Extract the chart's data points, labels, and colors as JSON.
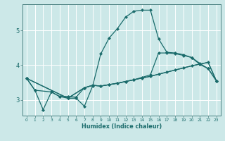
{
  "xlabel": "Humidex (Indice chaleur)",
  "xlim": [
    -0.5,
    23.5
  ],
  "ylim": [
    2.55,
    5.75
  ],
  "background_color": "#cce8e8",
  "line_color": "#1a6b6b",
  "grid_color": "#ffffff",
  "curve1_x": [
    0,
    1,
    2,
    3,
    4,
    5,
    6,
    7,
    8,
    9,
    10,
    11,
    12,
    13,
    14,
    15,
    16,
    17,
    18,
    19,
    20,
    21,
    22,
    23
  ],
  "curve1_y": [
    3.62,
    3.28,
    2.72,
    3.23,
    3.1,
    3.05,
    3.05,
    2.82,
    3.4,
    4.33,
    4.78,
    5.05,
    5.38,
    5.55,
    5.58,
    5.58,
    4.75,
    4.37,
    4.35,
    4.3,
    4.22,
    4.02,
    3.9,
    3.55
  ],
  "curve2_x": [
    0,
    1,
    3,
    4,
    5,
    6,
    7,
    8,
    9,
    10,
    11,
    12,
    13,
    14,
    15,
    16,
    17,
    18,
    19,
    20,
    21,
    22,
    23
  ],
  "curve2_y": [
    3.62,
    3.28,
    3.23,
    3.1,
    3.1,
    3.08,
    3.35,
    3.42,
    3.4,
    3.44,
    3.48,
    3.53,
    3.58,
    3.63,
    3.68,
    3.74,
    3.8,
    3.86,
    3.92,
    3.98,
    4.03,
    4.08,
    3.55
  ],
  "curve3_x": [
    0,
    5,
    7,
    8,
    9,
    10,
    11,
    12,
    13,
    14,
    15,
    16,
    17,
    18,
    19,
    20,
    21,
    22,
    23
  ],
  "curve3_y": [
    3.62,
    3.05,
    3.35,
    3.42,
    3.4,
    3.44,
    3.48,
    3.53,
    3.58,
    3.63,
    3.68,
    3.74,
    3.8,
    3.86,
    3.92,
    3.98,
    4.03,
    4.08,
    3.55
  ],
  "curve4_x": [
    0,
    5,
    7,
    8,
    9,
    10,
    11,
    12,
    13,
    14,
    15,
    16,
    17,
    18,
    19,
    20,
    21,
    22,
    23
  ],
  "curve4_y": [
    3.62,
    3.05,
    3.35,
    3.42,
    3.4,
    3.44,
    3.48,
    3.53,
    3.58,
    3.65,
    3.72,
    4.35,
    4.35,
    4.33,
    4.28,
    4.22,
    4.05,
    3.9,
    3.55
  ],
  "yticks": [
    3,
    4,
    5
  ],
  "xticks": [
    0,
    1,
    2,
    3,
    4,
    5,
    6,
    7,
    8,
    9,
    10,
    11,
    12,
    13,
    14,
    15,
    16,
    17,
    18,
    19,
    20,
    21,
    22,
    23
  ]
}
